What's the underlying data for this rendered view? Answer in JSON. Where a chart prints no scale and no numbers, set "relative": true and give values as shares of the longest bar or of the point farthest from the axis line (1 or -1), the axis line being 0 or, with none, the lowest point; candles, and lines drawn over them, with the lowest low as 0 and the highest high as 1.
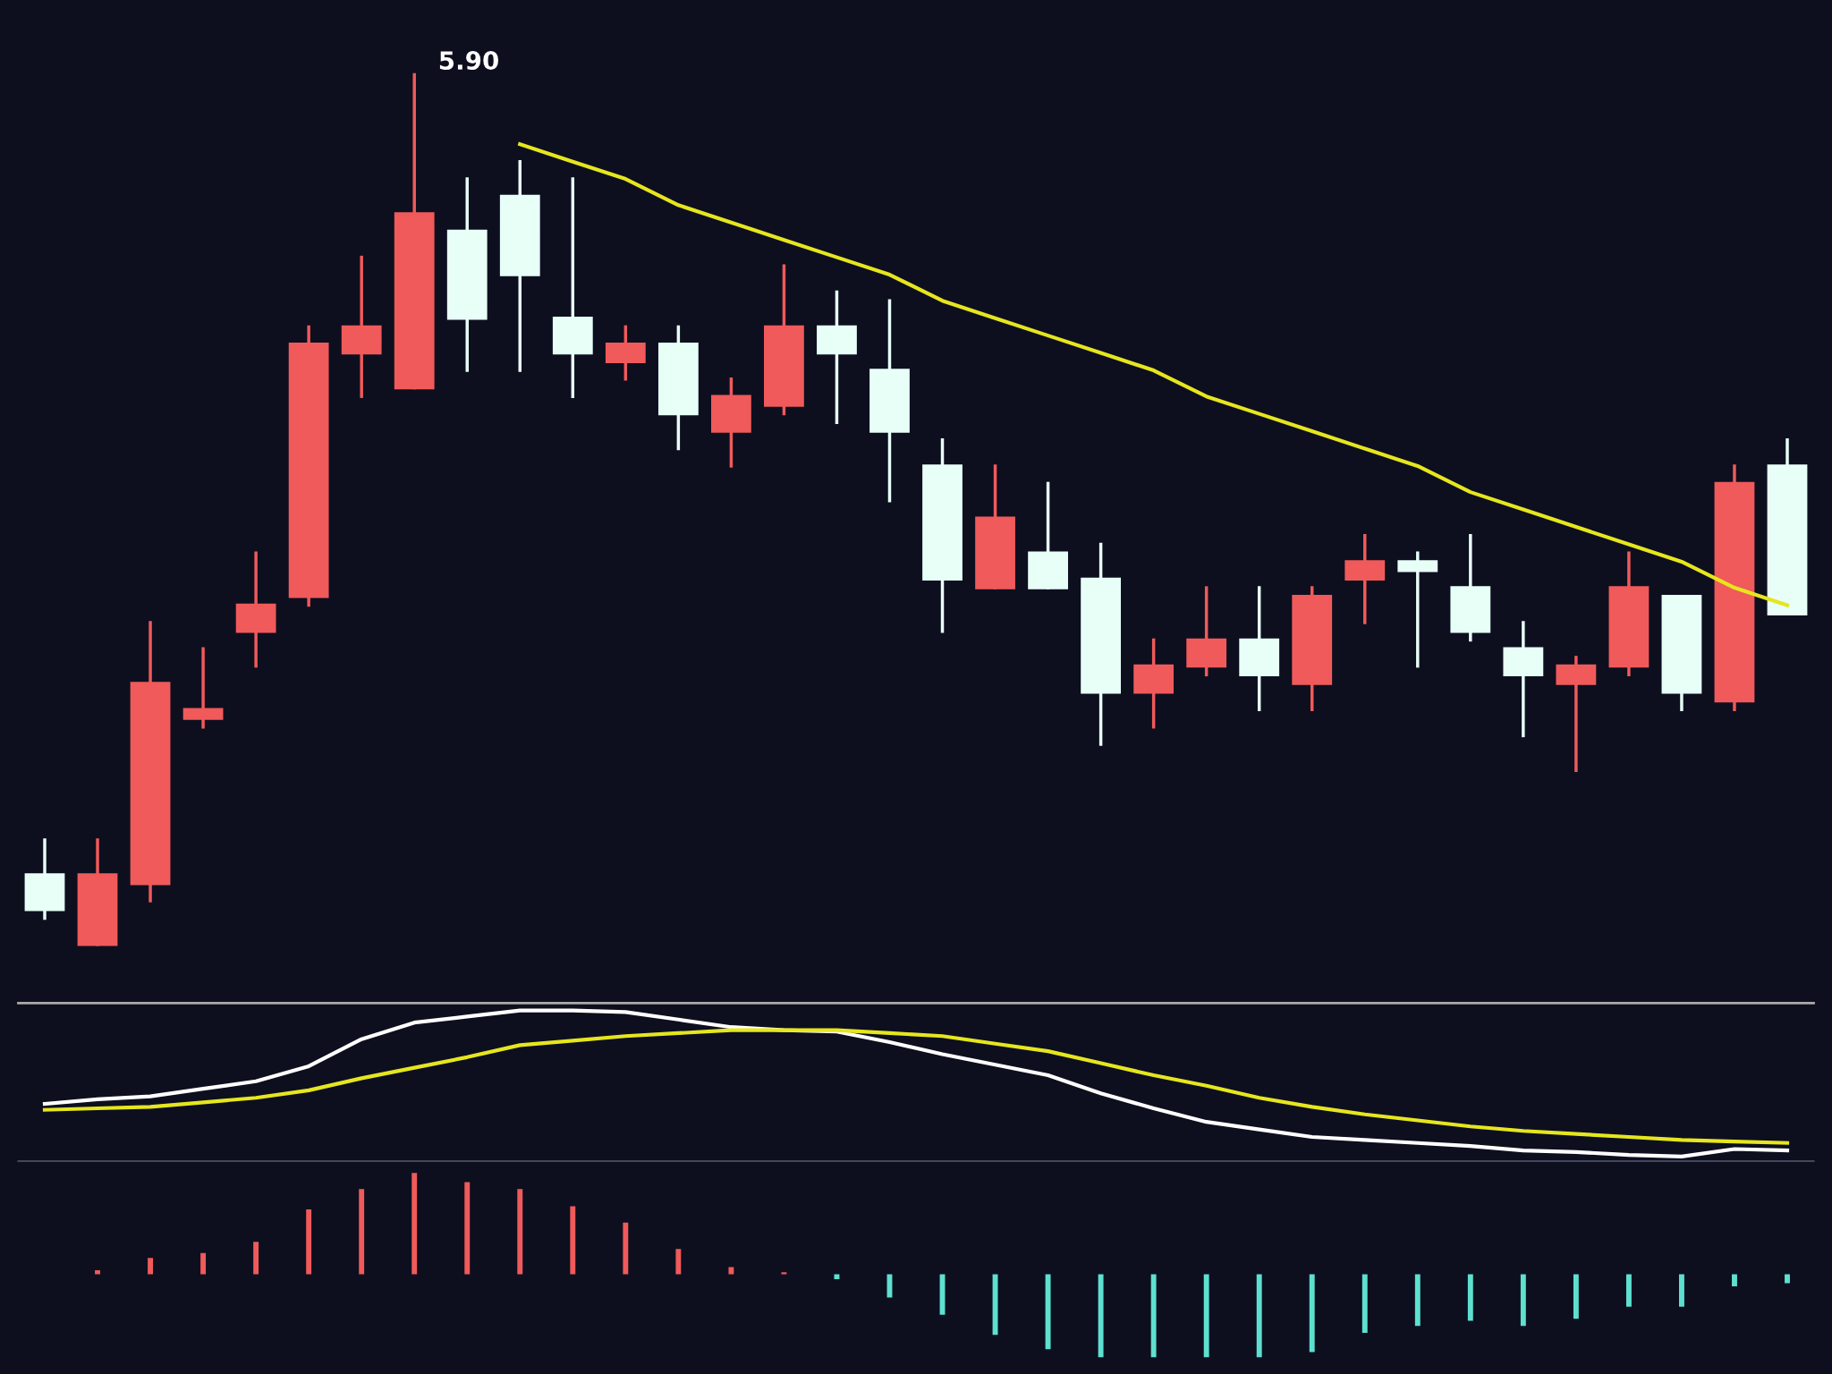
{
  "chart_data": [
    {
      "type": "candlestick",
      "relative": true,
      "categories": [
        null,
        null,
        null,
        null,
        null,
        null,
        null,
        null,
        null,
        null,
        null,
        null,
        null,
        null,
        null,
        null,
        null,
        null,
        null,
        null,
        null,
        null,
        null,
        null,
        null,
        null,
        null,
        null,
        null,
        null,
        null,
        null,
        null,
        null
      ],
      "ohlc": [
        [
          0.08,
          0.12,
          0.03,
          0.04
        ],
        [
          0,
          0.12,
          0,
          0.08
        ],
        [
          0.07,
          0.37,
          0.05,
          0.3
        ],
        [
          0.26,
          0.34,
          0.25,
          0.27
        ],
        [
          0.36,
          0.45,
          0.32,
          0.39
        ],
        [
          0.4,
          0.71,
          0.39,
          0.69
        ],
        [
          0.68,
          0.79,
          0.63,
          0.71
        ],
        [
          0.64,
          1,
          0.64,
          0.84
        ],
        [
          0.82,
          0.88,
          0.66,
          0.72
        ],
        [
          0.86,
          0.9,
          0.66,
          0.77
        ],
        [
          0.72,
          0.88,
          0.63,
          0.68
        ],
        [
          0.67,
          0.71,
          0.65,
          0.69
        ],
        [
          0.69,
          0.71,
          0.57,
          0.61
        ],
        [
          0.59,
          0.65,
          0.55,
          0.63
        ],
        [
          0.62,
          0.78,
          0.61,
          0.71
        ],
        [
          0.71,
          0.75,
          0.6,
          0.68
        ],
        [
          0.66,
          0.74,
          0.51,
          0.59
        ],
        [
          0.55,
          0.58,
          0.36,
          0.42
        ],
        [
          0.41,
          0.55,
          0.41,
          0.49
        ],
        [
          0.45,
          0.53,
          0.41,
          0.41
        ],
        [
          0.42,
          0.46,
          0.23,
          0.29
        ],
        [
          0.29,
          0.35,
          0.25,
          0.32
        ],
        [
          0.32,
          0.41,
          0.31,
          0.35
        ],
        [
          0.35,
          0.41,
          0.27,
          0.31
        ],
        [
          0.3,
          0.41,
          0.27,
          0.4
        ],
        [
          0.42,
          0.47,
          0.37,
          0.44
        ],
        [
          0.44,
          0.45,
          0.32,
          0.43
        ],
        [
          0.41,
          0.47,
          0.35,
          0.36
        ],
        [
          0.34,
          0.37,
          0.24,
          0.31
        ],
        [
          0.3,
          0.33,
          0.2,
          0.32
        ],
        [
          0.32,
          0.45,
          0.31,
          0.41
        ],
        [
          0.4,
          0.4,
          0.27,
          0.29
        ],
        [
          0.28,
          0.55,
          0.27,
          0.53
        ],
        [
          0.55,
          0.58,
          0.38,
          0.38
        ]
      ],
      "colors": [
        "#e8fff8",
        "#f05a5a",
        "#f05a5a",
        "#f05a5a",
        "#f05a5a",
        "#f05a5a",
        "#f05a5a",
        "#f05a5a",
        "#e8fff8",
        "#e8fff8",
        "#e8fff8",
        "#f05a5a",
        "#e8fff8",
        "#f05a5a",
        "#f05a5a",
        "#e8fff8",
        "#e8fff8",
        "#e8fff8",
        "#f05a5a",
        "#e8fff8",
        "#e8fff8",
        "#f05a5a",
        "#f05a5a",
        "#e8fff8",
        "#f05a5a",
        "#f05a5a",
        "#e8fff8",
        "#e8fff8",
        "#e8fff8",
        "#f05a5a",
        "#f05a5a",
        "#e8fff8",
        "#f05a5a",
        "#e8fff8"
      ],
      "series": [
        {
          "type": "line",
          "color": "#e6e61e",
          "values": [
            null,
            null,
            null,
            null,
            null,
            null,
            null,
            null,
            null,
            0.92,
            0.9,
            0.88,
            0.85,
            0.83,
            0.81,
            0.79,
            0.77,
            0.74,
            0.72,
            0.7,
            0.68,
            0.66,
            0.63,
            0.61,
            0.59,
            0.57,
            0.55,
            0.52,
            0.5,
            0.48,
            0.46,
            0.44,
            0.41,
            0.39
          ]
        }
      ],
      "annotations": [
        "5.90"
      ]
    },
    {
      "type": "line",
      "relative": true,
      "categories": [
        null,
        null,
        null,
        null,
        null,
        null,
        null,
        null,
        null,
        null,
        null,
        null,
        null,
        null,
        null,
        null,
        null,
        null,
        null,
        null,
        null,
        null,
        null,
        null,
        null,
        null,
        null,
        null,
        null,
        null,
        null,
        null,
        null,
        null
      ],
      "series": [
        {
          "color": "#ffffff",
          "values": [
            0.38,
            0.41,
            0.43,
            0.48,
            0.53,
            0.63,
            0.81,
            0.92,
            0.96,
            1.0,
            1.0,
            0.99,
            0.94,
            0.89,
            0.87,
            0.86,
            0.79,
            0.71,
            0.64,
            0.57,
            0.45,
            0.35,
            0.26,
            0.21,
            0.16,
            0.14,
            0.12,
            0.1,
            0.07,
            0.06,
            0.04,
            0.03,
            0.08,
            0.07
          ]
        },
        {
          "color": "#e6e61e",
          "values": [
            0.34,
            0.35,
            0.36,
            0.39,
            0.42,
            0.47,
            0.55,
            0.62,
            0.69,
            0.77,
            0.8,
            0.83,
            0.85,
            0.87,
            0.87,
            0.87,
            0.85,
            0.83,
            0.78,
            0.73,
            0.65,
            0.57,
            0.5,
            0.42,
            0.36,
            0.31,
            0.27,
            0.23,
            0.2,
            0.18,
            0.16,
            0.14,
            0.13,
            0.12
          ]
        }
      ]
    },
    {
      "type": "bar",
      "relative": true,
      "categories": [
        null,
        null,
        null,
        null,
        null,
        null,
        null,
        null,
        null,
        null,
        null,
        null,
        null,
        null,
        null,
        null,
        null,
        null,
        null,
        null,
        null,
        null,
        null,
        null,
        null,
        null,
        null,
        null,
        null,
        null,
        null,
        null,
        null,
        null
      ],
      "values": [
        null,
        0.04,
        0.16,
        0.21,
        0.32,
        0.64,
        0.84,
        1,
        0.91,
        0.84,
        0.67,
        0.51,
        0.25,
        0.07,
        0.02,
        -0.05,
        -0.23,
        -0.4,
        -0.6,
        -0.74,
        -0.82,
        -0.82,
        -0.82,
        -0.82,
        -0.77,
        -0.58,
        -0.51,
        -0.46,
        -0.51,
        -0.44,
        -0.32,
        -0.32,
        -0.12,
        -0.09
      ],
      "colors": [
        "#f05a5a",
        "#f05a5a",
        "#f05a5a",
        "#f05a5a",
        "#f05a5a",
        "#f05a5a",
        "#f05a5a",
        "#f05a5a",
        "#f05a5a",
        "#f05a5a",
        "#f05a5a",
        "#f05a5a",
        "#f05a5a",
        "#f05a5a",
        "#f05a5a",
        "#5ee0d0",
        "#5ee0d0",
        "#5ee0d0",
        "#5ee0d0",
        "#5ee0d0",
        "#5ee0d0",
        "#5ee0d0",
        "#5ee0d0",
        "#5ee0d0",
        "#5ee0d0",
        "#5ee0d0",
        "#5ee0d0",
        "#5ee0d0",
        "#5ee0d0",
        "#5ee0d0",
        "#5ee0d0",
        "#5ee0d0",
        "#5ee0d0",
        "#5ee0d0"
      ]
    }
  ]
}
